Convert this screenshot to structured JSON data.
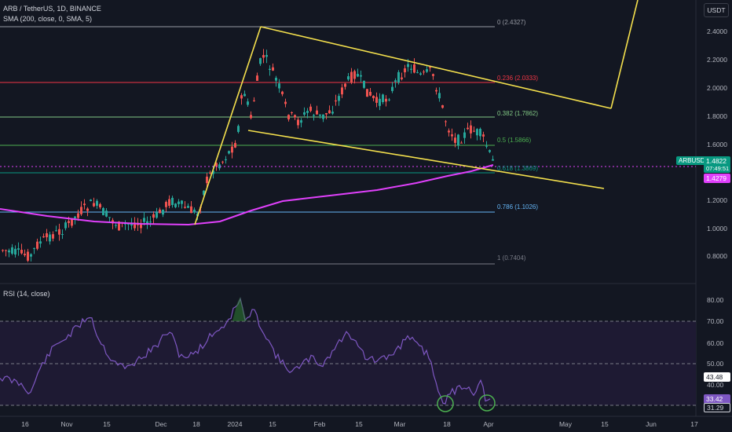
{
  "header": {
    "symbol_line": "ARB / TetherUS, 1D, BINANCE",
    "sma_line": "SMA (200, close, 0, SMA, 5)",
    "currency_button": "USDT"
  },
  "price_axis": {
    "ticks": [
      "2.4000",
      "2.2000",
      "2.0000",
      "1.8000",
      "1.6000",
      "1.2000",
      "1.0000",
      "0.8000"
    ]
  },
  "fib_levels": [
    {
      "label": "0 (2.4327)",
      "color": "#9598a1"
    },
    {
      "label": "0.236 (2.0333)",
      "color": "#f23645"
    },
    {
      "label": "0.382 (1.7862)",
      "color": "#81c784"
    },
    {
      "label": "0.5 (1.5866)",
      "color": "#4caf50"
    },
    {
      "label": "0.618 (1.3869)",
      "color": "#089981"
    },
    {
      "label": "0.786 (1.1026)",
      "color": "#64b5f6"
    },
    {
      "label": "1 (0.7404)",
      "color": "#787b86"
    }
  ],
  "price_tags": {
    "ticker": "ARBUSDT",
    "price": "1.4822",
    "countdown": "07:49:51",
    "sma_value": "1.4279"
  },
  "rsi": {
    "title": "RSI (14, close)",
    "ticks": [
      "80.00",
      "70.00",
      "60.00",
      "50.00",
      "40.00"
    ],
    "value_sma": "43.48",
    "value_rsi": "33.42",
    "value_low": "31.29"
  },
  "time_axis": {
    "labels": [
      "16",
      "Nov",
      "15",
      "Dec",
      "18",
      "2024",
      "15",
      "Feb",
      "15",
      "Mar",
      "18",
      "Apr",
      "May",
      "15",
      "Jun",
      "17"
    ]
  },
  "colors": {
    "background": "#131722",
    "up": "#26a69a",
    "down": "#ef5350",
    "sma": "#e040fb",
    "trendline": "#f4e04d",
    "rsi": "#7e57c2"
  }
}
